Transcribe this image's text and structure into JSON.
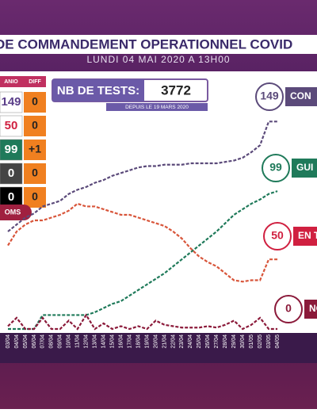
{
  "header": {
    "title": "DE COMMANDEMENT OPERATIONNEL COVID",
    "subtitle": "LUNDI 04 MAI 2020 A 13H00"
  },
  "summary_table": {
    "columns": [
      "ANIO",
      "DIFF"
    ],
    "rows": [
      [
        "149",
        "0"
      ],
      [
        "50",
        "0"
      ],
      [
        "99",
        "+1"
      ],
      [
        "0",
        "0"
      ],
      [
        "0",
        "0"
      ]
    ]
  },
  "tests": {
    "label": "NB DE TESTS:",
    "value": "3772",
    "note": "DEPUIS LE 19 MARS 2020"
  },
  "oms_label": "OMS",
  "callouts": [
    {
      "value": "149",
      "label": "CON"
    },
    {
      "value": "99",
      "label": "GUI"
    },
    {
      "value": "50",
      "label": "EN T"
    },
    {
      "value": "0",
      "label": "NO"
    }
  ],
  "chart_data": {
    "type": "line",
    "x": [
      "03/04",
      "04/04",
      "05/04",
      "06/04",
      "07/04",
      "08/04",
      "09/04",
      "10/04",
      "11/04",
      "12/04",
      "13/04",
      "14/04",
      "15/04",
      "16/04",
      "17/04",
      "18/04",
      "19/04",
      "20/04",
      "21/04",
      "22/04",
      "23/04",
      "24/04",
      "25/04",
      "26/04",
      "27/04",
      "28/04",
      "29/04",
      "30/04",
      "01/05",
      "02/05",
      "03/05",
      "04/05"
    ],
    "ylim": [
      0,
      160
    ],
    "series": [
      {
        "color": "#5b4a7a",
        "values": [
          70,
          75,
          80,
          83,
          88,
          90,
          92,
          97,
          100,
          102,
          105,
          107,
          110,
          112,
          114,
          116,
          117,
          117,
          118,
          118,
          118,
          119,
          119,
          119,
          119,
          120,
          121,
          123,
          127,
          132,
          149,
          149
        ]
      },
      {
        "color": "#1f7a5a",
        "values": [
          0,
          0,
          0,
          0,
          10,
          10,
          10,
          10,
          10,
          10,
          12,
          15,
          18,
          20,
          24,
          28,
          32,
          36,
          40,
          45,
          50,
          55,
          60,
          65,
          70,
          76,
          82,
          86,
          90,
          93,
          97,
          99
        ]
      },
      {
        "color": "#d8553a",
        "values": [
          60,
          70,
          75,
          78,
          78,
          80,
          82,
          85,
          90,
          88,
          88,
          86,
          84,
          82,
          82,
          80,
          78,
          76,
          74,
          70,
          65,
          58,
          52,
          48,
          45,
          40,
          35,
          34,
          35,
          35,
          50,
          50
        ]
      },
      {
        "color": "#8b1a3a",
        "values": [
          2,
          8,
          0,
          0,
          8,
          0,
          0,
          6,
          0,
          10,
          0,
          4,
          0,
          2,
          0,
          2,
          0,
          6,
          3,
          2,
          1,
          1,
          1,
          2,
          1,
          3,
          6,
          0,
          3,
          8,
          0,
          0
        ]
      }
    ]
  }
}
